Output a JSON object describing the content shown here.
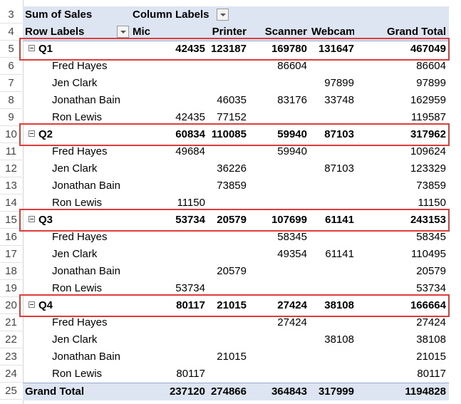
{
  "pivot": {
    "title_label": "Sum of Sales",
    "column_labels": "Column Labels",
    "row_labels": "Row Labels",
    "columns": [
      "Mic",
      "Printer",
      "Scanner",
      "Webcam",
      "Grand Total"
    ],
    "groups": [
      {
        "label": "Q1",
        "row": "5",
        "totals": [
          "42435",
          "123187",
          "169780",
          "131647",
          "467049"
        ],
        "rows": [
          {
            "row": "6",
            "name": "Fred Hayes",
            "values": [
              "",
              "",
              "86604",
              "",
              "86604"
            ]
          },
          {
            "row": "7",
            "name": "Jen Clark",
            "values": [
              "",
              "",
              "",
              "97899",
              "97899"
            ]
          },
          {
            "row": "8",
            "name": "Jonathan Bain",
            "values": [
              "",
              "46035",
              "83176",
              "33748",
              "162959"
            ]
          },
          {
            "row": "9",
            "name": "Ron Lewis",
            "values": [
              "42435",
              "77152",
              "",
              "",
              "119587"
            ]
          }
        ]
      },
      {
        "label": "Q2",
        "row": "10",
        "totals": [
          "60834",
          "110085",
          "59940",
          "87103",
          "317962"
        ],
        "rows": [
          {
            "row": "11",
            "name": "Fred Hayes",
            "values": [
              "49684",
              "",
              "59940",
              "",
              "109624"
            ]
          },
          {
            "row": "12",
            "name": "Jen Clark",
            "values": [
              "",
              "36226",
              "",
              "87103",
              "123329"
            ]
          },
          {
            "row": "13",
            "name": "Jonathan Bain",
            "values": [
              "",
              "73859",
              "",
              "",
              "73859"
            ]
          },
          {
            "row": "14",
            "name": "Ron Lewis",
            "values": [
              "11150",
              "",
              "",
              "",
              "11150"
            ]
          }
        ]
      },
      {
        "label": "Q3",
        "row": "15",
        "totals": [
          "53734",
          "20579",
          "107699",
          "61141",
          "243153"
        ],
        "rows": [
          {
            "row": "16",
            "name": "Fred Hayes",
            "values": [
              "",
              "",
              "58345",
              "",
              "58345"
            ]
          },
          {
            "row": "17",
            "name": "Jen Clark",
            "values": [
              "",
              "",
              "49354",
              "61141",
              "110495"
            ]
          },
          {
            "row": "18",
            "name": "Jonathan Bain",
            "values": [
              "",
              "20579",
              "",
              "",
              "20579"
            ]
          },
          {
            "row": "19",
            "name": "Ron Lewis",
            "values": [
              "53734",
              "",
              "",
              "",
              "53734"
            ]
          }
        ]
      },
      {
        "label": "Q4",
        "row": "20",
        "totals": [
          "80117",
          "21015",
          "27424",
          "38108",
          "166664"
        ],
        "rows": [
          {
            "row": "21",
            "name": "Fred Hayes",
            "values": [
              "",
              "",
              "27424",
              "",
              "27424"
            ]
          },
          {
            "row": "22",
            "name": "Jen Clark",
            "values": [
              "",
              "",
              "",
              "38108",
              "38108"
            ]
          },
          {
            "row": "23",
            "name": "Jonathan Bain",
            "values": [
              "",
              "21015",
              "",
              "",
              "21015"
            ]
          },
          {
            "row": "24",
            "name": "Ron Lewis",
            "values": [
              "80117",
              "",
              "",
              "",
              "80117"
            ]
          }
        ]
      }
    ],
    "grand_total": {
      "label": "Grand Total",
      "row": "25",
      "values": [
        "237120",
        "274866",
        "364843",
        "317999",
        "1194828"
      ]
    },
    "header_rows": [
      "3",
      "4"
    ],
    "highlight_color": "#e03c3c",
    "header_fill": "#dde4f2"
  }
}
